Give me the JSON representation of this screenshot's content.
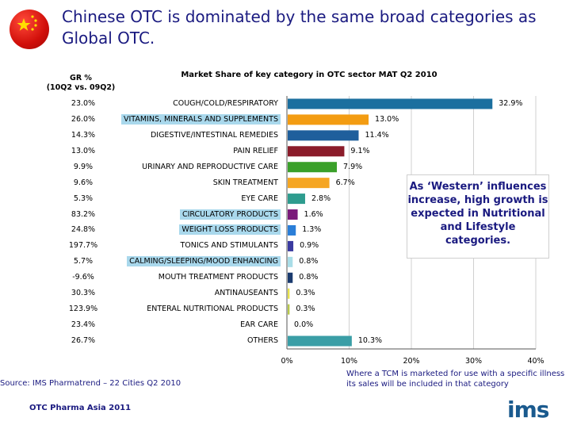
{
  "title": "Chinese OTC is dominated by the same broad categories as Global OTC.",
  "gr_header": [
    "GR %",
    "(10Q2 vs. 09Q2)"
  ],
  "note": "As ‘Western’ influences increase, high growth is expected in Nutritional and Lifestyle categories.",
  "footnote": "Where a TCM is marketed for use with a specific illness its sales will be included in that category",
  "source": "Source: IMS Pharmatrend – 22 Cities Q2 2010",
  "footer": "OTC Pharma Asia 2011",
  "logo": "ims",
  "colors": {
    "title": "#1a1a80",
    "highlight": "#a9d8ec"
  },
  "chart_data": {
    "type": "bar",
    "orientation": "horizontal",
    "title": "Market Share of key category in OTC sector MAT Q2 2010",
    "xlim": [
      0,
      40
    ],
    "x_ticks": [
      "0%",
      "10%",
      "20%",
      "30%",
      "40%"
    ],
    "grid": true,
    "categories": [
      "COUGH/COLD/RESPIRATORY",
      "VITAMINS, MINERALS AND SUPPLEMENTS",
      "DIGESTIVE/INTESTINAL REMEDIES",
      "PAIN RELIEF",
      "URINARY AND REPRODUCTIVE CARE",
      "SKIN TREATMENT",
      "EYE CARE",
      "CIRCULATORY PRODUCTS",
      "WEIGHT LOSS PRODUCTS",
      "TONICS AND STIMULANTS",
      "CALMING/SLEEPING/MOOD ENHANCING",
      "MOUTH TREATMENT PRODUCTS",
      "ANTINAUSEANTS",
      "ENTERAL NUTRITIONAL PRODUCTS",
      "EAR CARE",
      "OTHERS"
    ],
    "values": [
      32.9,
      13.0,
      11.4,
      9.1,
      7.9,
      6.7,
      2.8,
      1.6,
      1.3,
      0.9,
      0.8,
      0.8,
      0.3,
      0.3,
      0.0,
      10.3
    ],
    "value_labels": [
      "32.9%",
      "13.0%",
      "11.4%",
      "9.1%",
      "7.9%",
      "6.7%",
      "2.8%",
      "1.6%",
      "1.3%",
      "0.9%",
      "0.8%",
      "0.8%",
      "0.3%",
      "0.3%",
      "0.0%",
      "10.3%"
    ],
    "growth": [
      "23.0%",
      "26.0%",
      "14.3%",
      "13.0%",
      "9.9%",
      "9.6%",
      "5.3%",
      "83.2%",
      "24.8%",
      "197.7%",
      "5.7%",
      "-9.6%",
      "30.3%",
      "123.9%",
      "23.4%",
      "26.7%"
    ],
    "highlighted": [
      false,
      true,
      false,
      false,
      false,
      false,
      false,
      true,
      true,
      false,
      true,
      false,
      false,
      false,
      false,
      false
    ],
    "bar_colors": [
      "#1b6f9f",
      "#f39c12",
      "#1f5f9c",
      "#8b1c2a",
      "#3aa02a",
      "#f5a623",
      "#2e9c8e",
      "#7a1a7a",
      "#2a7ed8",
      "#3a3aa0",
      "#a9dde8",
      "#1a3a6e",
      "#e8e24a",
      "#b8c84a",
      "#cccccc",
      "#3a9ea6"
    ]
  }
}
